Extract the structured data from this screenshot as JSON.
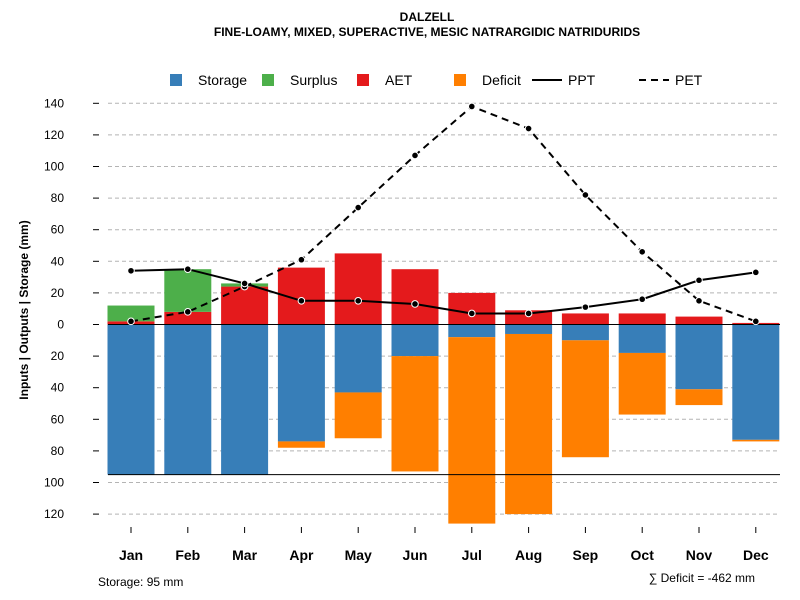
{
  "chart_data": {
    "type": "bar",
    "title": "DALZELL",
    "subtitle": "FINE-LOAMY, MIXED, SUPERACTIVE, MESIC NATRARGIDIC NATRIDURIDS",
    "ylabel": "Inputs | Outputs | Storage    (mm)",
    "ylim": [
      -130,
      140
    ],
    "yticks": [
      140,
      120,
      100,
      80,
      60,
      40,
      20,
      0,
      -20,
      -40,
      -60,
      -80,
      -100,
      -120
    ],
    "yticklabels": [
      "140",
      "120",
      "100",
      "80",
      "60",
      "40",
      "20",
      "0",
      "20",
      "40",
      "60",
      "80",
      "100",
      "120"
    ],
    "grid": true,
    "categories": [
      "Jan",
      "Feb",
      "Mar",
      "Apr",
      "May",
      "Jun",
      "Jul",
      "Aug",
      "Sep",
      "Oct",
      "Nov",
      "Dec"
    ],
    "legend": {
      "position": "top",
      "items": [
        {
          "label": "Storage",
          "kind": "box",
          "color": "#377eb8"
        },
        {
          "label": "Surplus",
          "kind": "box",
          "color": "#4daf4a"
        },
        {
          "label": "AET",
          "kind": "box",
          "color": "#e41a1c"
        },
        {
          "label": "Deficit",
          "kind": "box",
          "color": "#ff7f00"
        },
        {
          "label": "PPT",
          "kind": "solid",
          "color": "#000000"
        },
        {
          "label": "PET",
          "kind": "dashed",
          "color": "#000000"
        }
      ]
    },
    "series": [
      {
        "name": "AET",
        "color": "#e41a1c",
        "values": [
          2,
          8,
          24,
          36,
          45,
          35,
          20,
          9,
          7,
          7,
          5,
          1
        ]
      },
      {
        "name": "Surplus",
        "color": "#4daf4a",
        "values": [
          10,
          27,
          2,
          0,
          0,
          0,
          0,
          0,
          0,
          0,
          0,
          0
        ]
      },
      {
        "name": "Storage",
        "color": "#377eb8",
        "values": [
          95,
          95,
          95,
          74,
          43,
          20,
          8,
          6,
          10,
          18,
          41,
          73
        ]
      },
      {
        "name": "Deficit",
        "color": "#ff7f00",
        "values": [
          0,
          0,
          0,
          4,
          29,
          73,
          118,
          114,
          74,
          39,
          10,
          1
        ]
      },
      {
        "name": "PPT",
        "color": "#000000",
        "values": [
          34,
          35,
          26,
          15,
          15,
          13,
          7,
          7,
          11,
          16,
          28,
          33
        ]
      },
      {
        "name": "PET",
        "color": "#000000",
        "values": [
          2,
          8,
          24,
          41,
          74,
          107,
          138,
          124,
          82,
          46,
          15,
          2
        ]
      }
    ],
    "storage_capacity": 95,
    "footer_left": "Storage: 95 mm",
    "footer_right": "∑ Deficit = -462 mm"
  }
}
